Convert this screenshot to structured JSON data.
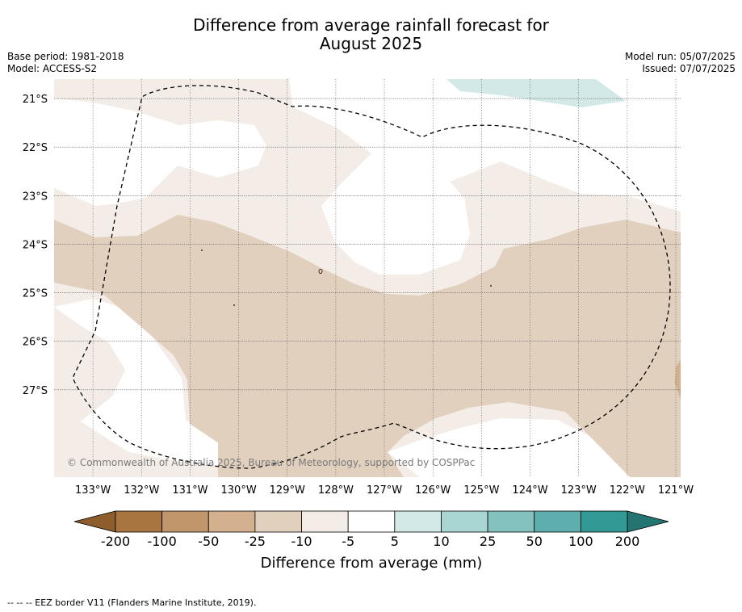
{
  "title": {
    "line1": "Difference from average rainfall forecast for",
    "line2": "August 2025"
  },
  "meta_left": {
    "base_period": "Base period: 1981-2018",
    "model": "Model: ACCESS-S2"
  },
  "meta_right": {
    "model_run": "Model run: 05/07/2025",
    "issued": "Issued: 07/07/2025"
  },
  "map": {
    "lon_labels": [
      "133°W",
      "132°W",
      "131°W",
      "130°W",
      "129°W",
      "128°W",
      "127°W",
      "126°W",
      "125°W",
      "124°W",
      "123°W",
      "122°W",
      "121°W"
    ],
    "lat_labels": [
      "21°S",
      "22°S",
      "23°S",
      "24°S",
      "25°S",
      "26°S",
      "27°S"
    ],
    "lon_range": [
      -133.8,
      -120.9
    ],
    "lat_range": [
      -20.6,
      -28.8
    ],
    "copyright": "© Commonwealth of Australia 2025, Bureau of Meteorology, supported by COSPPac"
  },
  "colorbar": {
    "ticks": [
      "-200",
      "-100",
      "-50",
      "-25",
      "-10",
      "-5",
      "5",
      "10",
      "25",
      "50",
      "100",
      "200"
    ],
    "colors": [
      "#a87540",
      "#c0966a",
      "#d3b08e",
      "#e2d0bf",
      "#f4ede7",
      "#ffffff",
      "#d3e9e7",
      "#a9d5d3",
      "#84c2bf",
      "#5daead",
      "#329994"
    ],
    "low_color": "#8d5e2c",
    "high_color": "#237572",
    "title": "Difference from average (mm)"
  },
  "footnote": "--  --  -- EEZ border V11 (Flanders Marine Institute, 2019)."
}
